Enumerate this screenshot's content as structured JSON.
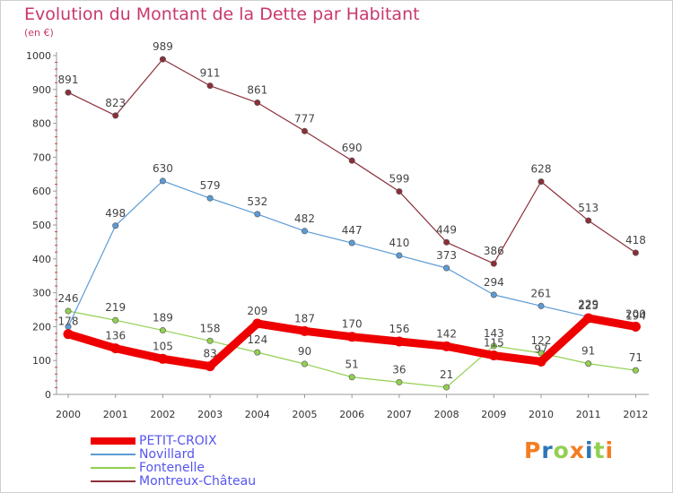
{
  "chart_data": {
    "type": "line",
    "title": "Evolution du Montant de la Dette par Habitant",
    "subtitle": "(en €)",
    "x": [
      "2000",
      "2001",
      "2002",
      "2003",
      "2004",
      "2005",
      "2006",
      "2007",
      "2008",
      "2009",
      "2010",
      "2011",
      "2012"
    ],
    "yticks": [
      0,
      100,
      200,
      300,
      400,
      500,
      600,
      700,
      800,
      900,
      1000
    ],
    "ylim": [
      0,
      1000
    ],
    "grid": false,
    "legend": "bottom-left",
    "series": [
      {
        "name": "PETIT-CROIX",
        "color": "#ee0000",
        "values": [
          178,
          136,
          105,
          83,
          209,
          187,
          170,
          156,
          142,
          115,
          97,
          225,
          200
        ],
        "labels": [
          "178",
          "136",
          "105",
          "83",
          "209",
          "187",
          "170",
          "156",
          "142",
          "115",
          "97",
          "225",
          "200"
        ]
      },
      {
        "name": "Novillard",
        "color": "#5b9bd5",
        "values": [
          200,
          498,
          630,
          579,
          532,
          482,
          447,
          410,
          373,
          294,
          261,
          229,
          194
        ],
        "labels": [
          "",
          "498",
          "630",
          "579",
          "532",
          "482",
          "447",
          "410",
          "373",
          "294",
          "261",
          "229",
          "194"
        ]
      },
      {
        "name": "Fontenelle",
        "color": "#92d050",
        "values": [
          246,
          219,
          189,
          158,
          124,
          90,
          51,
          36,
          21,
          143,
          122,
          91,
          71
        ],
        "labels": [
          "246",
          "219",
          "189",
          "158",
          "124",
          "90",
          "51",
          "36",
          "21",
          "143",
          "122",
          "91",
          "71"
        ]
      },
      {
        "name": "Montreux-Château",
        "color": "#8b2f3a",
        "values": [
          891,
          823,
          989,
          911,
          861,
          777,
          690,
          599,
          449,
          386,
          628,
          513,
          418
        ],
        "labels": [
          "891",
          "823",
          "989",
          "911",
          "861",
          "777",
          "690",
          "599",
          "449",
          "386",
          "628",
          "513",
          "418"
        ]
      }
    ]
  },
  "logo": {
    "text": "Proxiti",
    "colors": [
      "#f47d20",
      "#2e75b6",
      "#92d050",
      "#f47d20",
      "#2e75b6",
      "#92d050",
      "#f47d20"
    ]
  }
}
